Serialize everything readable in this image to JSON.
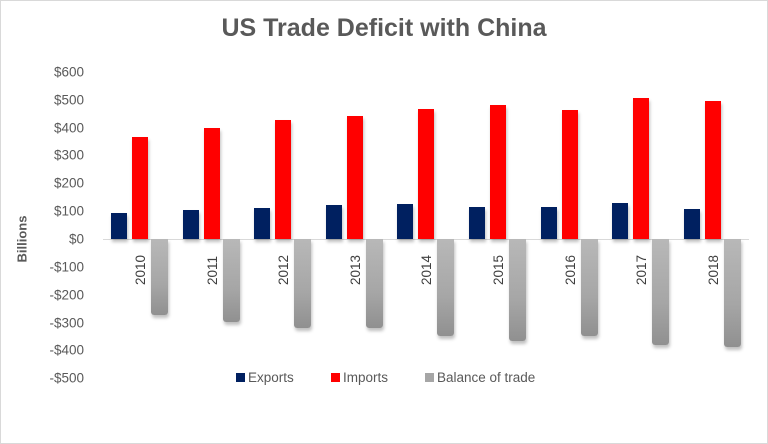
{
  "chart_data": {
    "type": "bar",
    "title": "US Trade Deficit with China",
    "xlabel": "",
    "ylabel": "Billions",
    "ylim": [
      -500,
      600
    ],
    "yticks": [
      "$600",
      "$500",
      "$400",
      "$300",
      "$200",
      "$100",
      "$0",
      "-$100",
      "-$200",
      "-$300",
      "-$400",
      "-$500"
    ],
    "grid": false,
    "legend_position": "bottom",
    "categories": [
      "2010",
      "2011",
      "2012",
      "2013",
      "2014",
      "2015",
      "2016",
      "2017",
      "2018"
    ],
    "series": [
      {
        "name": "Exports",
        "color": "#002060",
        "values": [
          92,
          104,
          111,
          122,
          124,
          116,
          116,
          130,
          108
        ]
      },
      {
        "name": "Imports",
        "color": "#ff0000",
        "values": [
          365,
          399,
          426,
          440,
          466,
          480,
          462,
          505,
          495
        ]
      },
      {
        "name": "Balance of trade",
        "color": "#a6a6a6",
        "values": [
          -273,
          -297,
          -318,
          -318,
          -347,
          -367,
          -347,
          -382,
          -388
        ]
      }
    ]
  }
}
